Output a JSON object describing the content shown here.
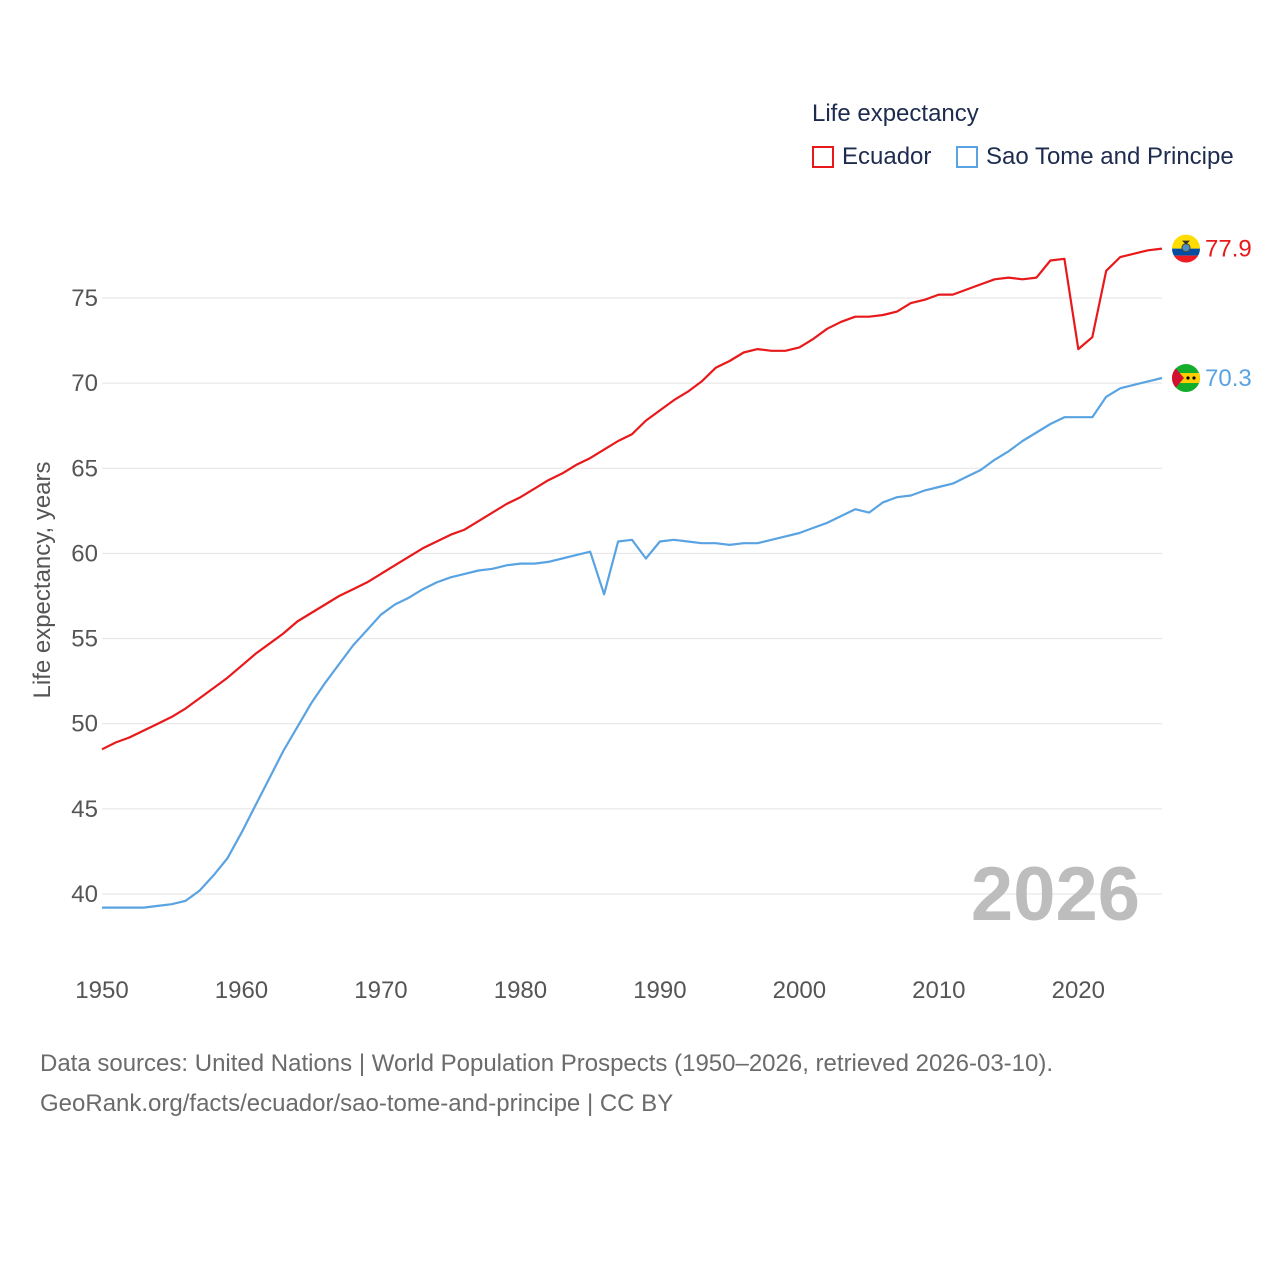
{
  "chart_data": {
    "type": "line",
    "title": "Life expectancy",
    "xlabel": "",
    "ylabel": "Life expectancy, years",
    "xlim": [
      1950,
      2026
    ],
    "ylim": [
      38,
      79
    ],
    "yticks": [
      40,
      45,
      50,
      55,
      60,
      65,
      70,
      75
    ],
    "xticks": [
      1950,
      1960,
      1970,
      1980,
      1990,
      2000,
      2010,
      2020
    ],
    "grid": true,
    "legend_position": "top-right",
    "current_year_label": "2026",
    "x": [
      1950,
      1951,
      1952,
      1953,
      1954,
      1955,
      1956,
      1957,
      1958,
      1959,
      1960,
      1961,
      1962,
      1963,
      1964,
      1965,
      1966,
      1967,
      1968,
      1969,
      1970,
      1971,
      1972,
      1973,
      1974,
      1975,
      1976,
      1977,
      1978,
      1979,
      1980,
      1981,
      1982,
      1983,
      1984,
      1985,
      1986,
      1987,
      1988,
      1989,
      1990,
      1991,
      1992,
      1993,
      1994,
      1995,
      1996,
      1997,
      1998,
      1999,
      2000,
      2001,
      2002,
      2003,
      2004,
      2005,
      2006,
      2007,
      2008,
      2009,
      2010,
      2011,
      2012,
      2013,
      2014,
      2015,
      2016,
      2017,
      2018,
      2019,
      2020,
      2021,
      2022,
      2023,
      2024,
      2025,
      2026
    ],
    "series": [
      {
        "name": "Ecuador",
        "color": "#e8191b",
        "end_label": "77.9",
        "values": [
          48.5,
          48.9,
          49.2,
          49.6,
          50.0,
          50.4,
          50.9,
          51.5,
          52.1,
          52.7,
          53.4,
          54.1,
          54.7,
          55.3,
          56.0,
          56.5,
          57.0,
          57.5,
          57.9,
          58.3,
          58.8,
          59.3,
          59.8,
          60.3,
          60.7,
          61.1,
          61.4,
          61.9,
          62.4,
          62.9,
          63.3,
          63.8,
          64.3,
          64.7,
          65.2,
          65.6,
          66.1,
          66.6,
          67.0,
          67.8,
          68.4,
          69.0,
          69.5,
          70.1,
          70.9,
          71.3,
          71.8,
          72.0,
          71.9,
          71.9,
          72.1,
          72.6,
          73.2,
          73.6,
          73.9,
          73.9,
          74.0,
          74.2,
          74.7,
          74.9,
          75.2,
          75.2,
          75.5,
          75.8,
          76.1,
          76.2,
          76.1,
          76.2,
          77.2,
          77.3,
          72.0,
          72.7,
          76.6,
          77.4,
          77.6,
          77.8,
          77.9
        ]
      },
      {
        "name": "Sao Tome and Principe",
        "color": "#5aa3e2",
        "end_label": "70.3",
        "values": [
          39.2,
          39.2,
          39.2,
          39.2,
          39.3,
          39.4,
          39.6,
          40.2,
          41.1,
          42.1,
          43.6,
          45.2,
          46.8,
          48.4,
          49.8,
          51.2,
          52.4,
          53.5,
          54.6,
          55.5,
          56.4,
          57.0,
          57.4,
          57.9,
          58.3,
          58.6,
          58.8,
          59.0,
          59.1,
          59.3,
          59.4,
          59.4,
          59.5,
          59.7,
          59.9,
          60.1,
          57.6,
          60.7,
          60.8,
          59.7,
          60.7,
          60.8,
          60.7,
          60.6,
          60.6,
          60.5,
          60.6,
          60.6,
          60.8,
          61.0,
          61.2,
          61.5,
          61.8,
          62.2,
          62.6,
          62.4,
          63.0,
          63.3,
          63.4,
          63.7,
          63.9,
          64.1,
          64.5,
          64.9,
          65.5,
          66.0,
          66.6,
          67.1,
          67.6,
          68.0,
          68.0,
          68.0,
          69.2,
          69.7,
          69.9,
          70.1,
          70.3
        ]
      }
    ]
  },
  "legend": {
    "title": "Life expectancy",
    "items": [
      {
        "label": "Ecuador",
        "color": "#e8191b"
      },
      {
        "label": "Sao Tome and Principe",
        "color": "#5aa3e2"
      }
    ]
  },
  "footer": {
    "line1": "Data sources: United Nations | World Population Prospects (1950–2026, retrieved 2026-03-10).",
    "line2": "GeoRank.org/facts/ecuador/sao-tome-and-principe | CC BY"
  }
}
